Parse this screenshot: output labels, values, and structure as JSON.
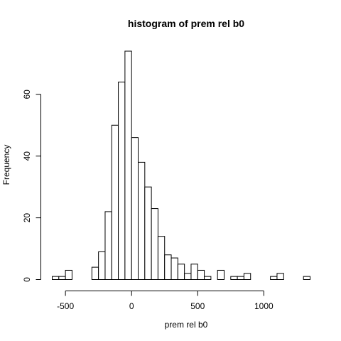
{
  "chart_data": {
    "type": "bar",
    "title": "histogram of prem rel b0",
    "xlabel": "prem rel b0",
    "ylabel": "Frequency",
    "bin_width": 50,
    "bin_starts": [
      -600,
      -550,
      -500,
      -450,
      -400,
      -350,
      -300,
      -250,
      -200,
      -150,
      -100,
      -50,
      0,
      50,
      100,
      150,
      200,
      250,
      300,
      350,
      400,
      450,
      500,
      550,
      600,
      650,
      700,
      750,
      800,
      850,
      900,
      950,
      1000,
      1050,
      1100,
      1150,
      1200,
      1250,
      1300
    ],
    "counts": [
      1,
      1,
      3,
      0,
      0,
      0,
      4,
      9,
      22,
      50,
      64,
      74,
      46,
      38,
      30,
      23,
      14,
      8,
      7,
      5,
      2,
      5,
      3,
      1,
      0,
      3,
      0,
      1,
      1,
      2,
      0,
      0,
      0,
      1,
      2,
      0,
      0,
      0,
      1
    ],
    "x_ticks": [
      -500,
      0,
      500,
      1000
    ],
    "x_tick_labels": [
      "-500",
      "0",
      "500",
      "1000"
    ],
    "y_ticks": [
      0,
      20,
      40,
      60
    ],
    "y_tick_labels": [
      "0",
      "20",
      "40",
      "60"
    ],
    "xlim": [
      -600,
      1350
    ],
    "ylim": [
      0,
      74
    ],
    "grid": false,
    "legend": "none"
  }
}
